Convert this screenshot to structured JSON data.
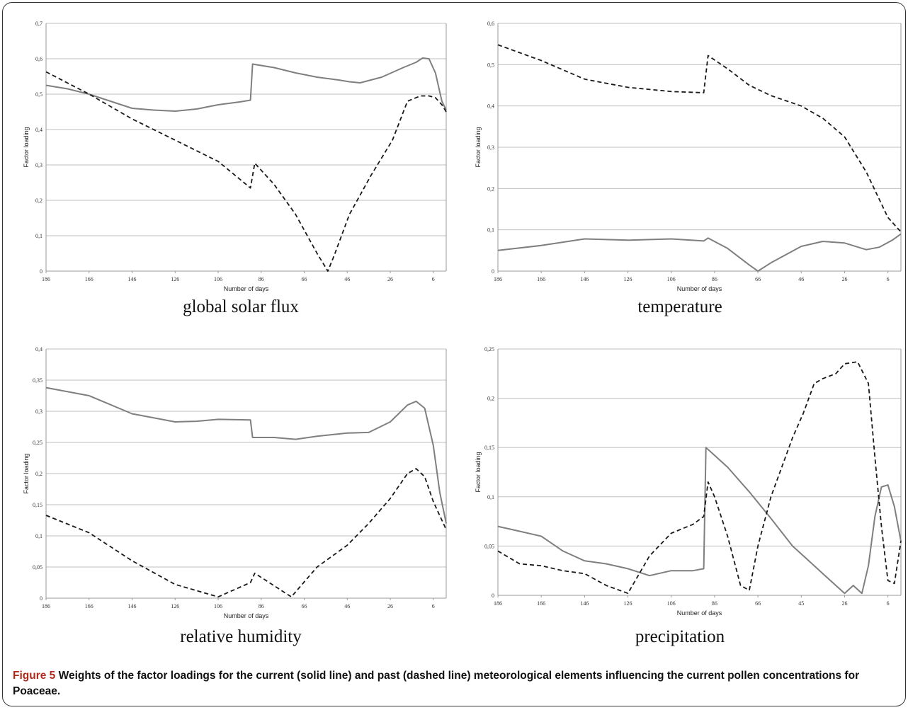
{
  "figure": {
    "label": "Figure 5",
    "caption": "Weights of the factor loadings for the current (solid line) and past (dashed line) meteorological elements influencing the current pollen concentrations for Poaceae."
  },
  "colors": {
    "solid": "#7f7f7f",
    "dashed": "#1a1a1a",
    "grid": "#bfbfbf"
  },
  "chart_data": [
    {
      "type": "line",
      "title": "global solar flux",
      "xlabel": "Number of days",
      "ylabel": "Factor loading",
      "x_ticks": [
        "186",
        "166",
        "146",
        "126",
        "106",
        "86",
        "66",
        "46",
        "26",
        "6"
      ],
      "y_ticks": [
        "0",
        "0,1",
        "0,2",
        "0,3",
        "0,4",
        "0,5",
        "0,6",
        "0,7"
      ],
      "xlim": [
        186,
        0
      ],
      "ylim": [
        0,
        0.7
      ],
      "grid": "horizontal",
      "series": [
        {
          "style": "solid",
          "x": [
            186,
            176,
            166,
            156,
            146,
            136,
            126,
            116,
            106,
            96,
            91,
            90,
            80,
            70,
            60,
            50,
            45,
            40,
            30,
            20,
            14,
            11,
            8,
            5,
            2,
            0
          ],
          "y": [
            0.525,
            0.515,
            0.5,
            0.48,
            0.46,
            0.455,
            0.452,
            0.458,
            0.47,
            0.478,
            0.483,
            0.585,
            0.575,
            0.56,
            0.548,
            0.54,
            0.535,
            0.532,
            0.548,
            0.575,
            0.59,
            0.602,
            0.6,
            0.56,
            0.48,
            0.455
          ]
        },
        {
          "style": "dashed",
          "x": [
            186,
            166,
            146,
            126,
            106,
            91,
            89,
            80,
            70,
            60,
            55,
            52,
            45,
            35,
            25,
            18,
            12,
            8,
            5,
            2,
            0
          ],
          "y": [
            0.563,
            0.5,
            0.43,
            0.37,
            0.31,
            0.235,
            0.305,
            0.245,
            0.16,
            0.05,
            0.0,
            0.045,
            0.16,
            0.27,
            0.37,
            0.48,
            0.495,
            0.495,
            0.49,
            0.47,
            0.45
          ]
        }
      ]
    },
    {
      "type": "line",
      "title": "temperature",
      "xlabel": "Number of days",
      "ylabel": "Factor loading",
      "x_ticks": [
        "186",
        "166",
        "146",
        "126",
        "106",
        "86",
        "66",
        "46",
        "26",
        "6"
      ],
      "y_ticks": [
        "0",
        "0,1",
        "0,2",
        "0,3",
        "0,4",
        "0,5",
        "0,6"
      ],
      "xlim": [
        186,
        0
      ],
      "ylim": [
        0,
        0.6
      ],
      "grid": "horizontal",
      "series": [
        {
          "style": "solid",
          "x": [
            186,
            166,
            146,
            126,
            106,
            91,
            89,
            80,
            70,
            66,
            60,
            46,
            36,
            26,
            16,
            10,
            4,
            0
          ],
          "y": [
            0.05,
            0.062,
            0.078,
            0.075,
            0.078,
            0.073,
            0.08,
            0.055,
            0.015,
            0.0,
            0.02,
            0.06,
            0.072,
            0.068,
            0.052,
            0.058,
            0.075,
            0.09
          ]
        },
        {
          "style": "dashed",
          "x": [
            186,
            166,
            146,
            126,
            106,
            91,
            89,
            80,
            70,
            60,
            46,
            36,
            26,
            16,
            6,
            0
          ],
          "y": [
            0.548,
            0.51,
            0.465,
            0.445,
            0.435,
            0.432,
            0.522,
            0.49,
            0.45,
            0.425,
            0.4,
            0.37,
            0.325,
            0.24,
            0.13,
            0.095
          ]
        }
      ]
    },
    {
      "type": "line",
      "title": "relative humidity",
      "xlabel": "Number of days",
      "ylabel": "Factor loading",
      "x_ticks": [
        "186",
        "166",
        "146",
        "126",
        "106",
        "86",
        "66",
        "46",
        "26",
        "6"
      ],
      "y_ticks": [
        "0",
        "0,05",
        "0,1",
        "0,15",
        "0,2",
        "0,25",
        "0,3",
        "0,35",
        "0,4"
      ],
      "xlim": [
        186,
        0
      ],
      "ylim": [
        0,
        0.4
      ],
      "grid": "horizontal",
      "series": [
        {
          "style": "solid",
          "x": [
            186,
            166,
            146,
            126,
            116,
            106,
            91,
            90,
            80,
            70,
            60,
            46,
            36,
            26,
            18,
            14,
            10,
            6,
            3,
            0
          ],
          "y": [
            0.338,
            0.325,
            0.296,
            0.283,
            0.284,
            0.287,
            0.286,
            0.258,
            0.258,
            0.255,
            0.26,
            0.265,
            0.266,
            0.283,
            0.31,
            0.316,
            0.305,
            0.245,
            0.17,
            0.12
          ]
        },
        {
          "style": "dashed",
          "x": [
            186,
            166,
            146,
            126,
            106,
            91,
            89,
            80,
            72,
            60,
            46,
            36,
            26,
            18,
            14,
            10,
            6,
            0
          ],
          "y": [
            0.133,
            0.105,
            0.06,
            0.022,
            0.002,
            0.025,
            0.04,
            0.02,
            0.002,
            0.05,
            0.085,
            0.12,
            0.16,
            0.2,
            0.208,
            0.195,
            0.155,
            0.11
          ]
        }
      ]
    },
    {
      "type": "line",
      "title": "precipitation",
      "xlabel": "Number of days",
      "ylabel": "Factor loading",
      "x_ticks": [
        "186",
        "166",
        "146",
        "126",
        "106",
        "86",
        "66",
        "45",
        "26",
        "6"
      ],
      "y_ticks": [
        "0",
        "0,05",
        "0,1",
        "0,15",
        "0,2",
        "0,25"
      ],
      "xlim": [
        186,
        0
      ],
      "ylim": [
        0,
        0.25
      ],
      "grid": "horizontal",
      "series": [
        {
          "style": "solid",
          "x": [
            186,
            176,
            166,
            156,
            146,
            136,
            126,
            116,
            106,
            96,
            91,
            90,
            80,
            70,
            60,
            50,
            45,
            40,
            35,
            30,
            26,
            22,
            18,
            15,
            12,
            9,
            6,
            3,
            0
          ],
          "y": [
            0.07,
            0.065,
            0.06,
            0.045,
            0.035,
            0.032,
            0.027,
            0.02,
            0.025,
            0.025,
            0.027,
            0.15,
            0.13,
            0.105,
            0.078,
            0.05,
            0.04,
            0.03,
            0.02,
            0.01,
            0.002,
            0.01,
            0.002,
            0.03,
            0.08,
            0.11,
            0.112,
            0.09,
            0.055
          ]
        },
        {
          "style": "dashed",
          "x": [
            186,
            176,
            166,
            156,
            146,
            136,
            126,
            116,
            106,
            96,
            91,
            89,
            86,
            80,
            74,
            70,
            66,
            60,
            50,
            45,
            40,
            36,
            30,
            26,
            20,
            15,
            12,
            9,
            6,
            3,
            0
          ],
          "y": [
            0.045,
            0.032,
            0.03,
            0.025,
            0.022,
            0.01,
            0.002,
            0.04,
            0.063,
            0.072,
            0.08,
            0.115,
            0.1,
            0.06,
            0.01,
            0.005,
            0.05,
            0.1,
            0.16,
            0.185,
            0.215,
            0.22,
            0.225,
            0.235,
            0.237,
            0.215,
            0.14,
            0.07,
            0.015,
            0.012,
            0.055
          ]
        }
      ]
    }
  ]
}
